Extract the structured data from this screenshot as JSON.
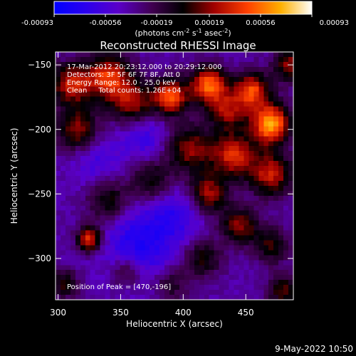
{
  "chart_data": {
    "type": "heatmap",
    "title": "Reconstructed RHESSI Image",
    "xlabel": "Heliocentric X (arcsec)",
    "ylabel": "Heliocentric Y (arcsec)",
    "xlim": [
      298,
      488
    ],
    "ylim": [
      -332,
      -140
    ],
    "x_ticks": [
      300,
      350,
      400,
      450
    ],
    "y_ticks": [
      -150,
      -200,
      -250,
      -300
    ],
    "colorbar": {
      "min": -0.00093,
      "max": 0.00093,
      "tick_values": [
        -0.00093,
        -0.00056,
        -0.00019,
        0.00019,
        0.00056,
        0.00093
      ],
      "tick_labels": [
        "-0.00093",
        "-0.00056",
        "-0.00019",
        "0.00019",
        "0.00056",
        "0.00093"
      ],
      "unit_prefix": "(photons cm",
      "unit_exp1": "-2",
      "unit_mid1": " s",
      "unit_exp2": "-1",
      "unit_mid2": " asec",
      "unit_exp3": "-2",
      "unit_suffix": ")"
    },
    "annotations": [
      "17-Mar-2012 20:23:12.000 to 20:29:12.000",
      "Detectors: 3F 5F 6F 7F 8F, Att 0",
      "Energy Range: 12.0 - 25.0 keV",
      "Clean     Total counts: 1.26E+04"
    ],
    "peak_label": "Position of Peak = [470,-196]",
    "peak": [
      470,
      -196
    ],
    "sources": [
      {
        "x": 470,
        "y": -196,
        "amp": 1.0,
        "r": 11
      },
      {
        "x": 455,
        "y": -170,
        "amp": 0.75,
        "r": 10
      },
      {
        "x": 390,
        "y": -175,
        "amp": 0.8,
        "r": 10
      },
      {
        "x": 420,
        "y": -165,
        "amp": 0.85,
        "r": 10
      },
      {
        "x": 435,
        "y": -185,
        "amp": 0.55,
        "r": 11
      },
      {
        "x": 340,
        "y": -160,
        "amp": 0.75,
        "r": 13
      },
      {
        "x": 360,
        "y": -180,
        "amp": 0.55,
        "r": 12
      },
      {
        "x": 315,
        "y": -200,
        "amp": 0.55,
        "r": 12
      },
      {
        "x": 310,
        "y": -165,
        "amp": 0.65,
        "r": 11
      },
      {
        "x": 405,
        "y": -215,
        "amp": 0.55,
        "r": 13
      },
      {
        "x": 440,
        "y": -220,
        "amp": 0.7,
        "r": 12
      },
      {
        "x": 470,
        "y": -235,
        "amp": 0.65,
        "r": 12
      },
      {
        "x": 420,
        "y": -250,
        "amp": 0.6,
        "r": 11
      },
      {
        "x": 375,
        "y": -240,
        "amp": 0.4,
        "r": 12
      },
      {
        "x": 340,
        "y": -255,
        "amp": 0.4,
        "r": 12
      },
      {
        "x": 445,
        "y": -275,
        "amp": 0.55,
        "r": 10
      },
      {
        "x": 470,
        "y": -290,
        "amp": 0.4,
        "r": 10
      },
      {
        "x": 415,
        "y": -300,
        "amp": 0.4,
        "r": 11
      },
      {
        "x": 325,
        "y": -285,
        "amp": 0.75,
        "r": 7
      },
      {
        "x": 355,
        "y": -310,
        "amp": 0.35,
        "r": 9
      },
      {
        "x": 390,
        "y": -320,
        "amp": 0.3,
        "r": 10
      },
      {
        "x": 480,
        "y": -325,
        "amp": 0.45,
        "r": 9
      },
      {
        "x": 305,
        "y": -320,
        "amp": 0.4,
        "r": 8
      },
      {
        "x": 485,
        "y": -150,
        "amp": 0.55,
        "r": 9
      },
      {
        "x": 370,
        "y": -205,
        "amp": -0.25,
        "r": 14
      },
      {
        "x": 365,
        "y": -290,
        "amp": -0.35,
        "r": 20
      },
      {
        "x": 330,
        "y": -225,
        "amp": -0.2,
        "r": 14
      },
      {
        "x": 395,
        "y": -265,
        "amp": -0.25,
        "r": 16
      }
    ],
    "background": -0.42
  },
  "footer_date": "9-May-2022 10:50"
}
